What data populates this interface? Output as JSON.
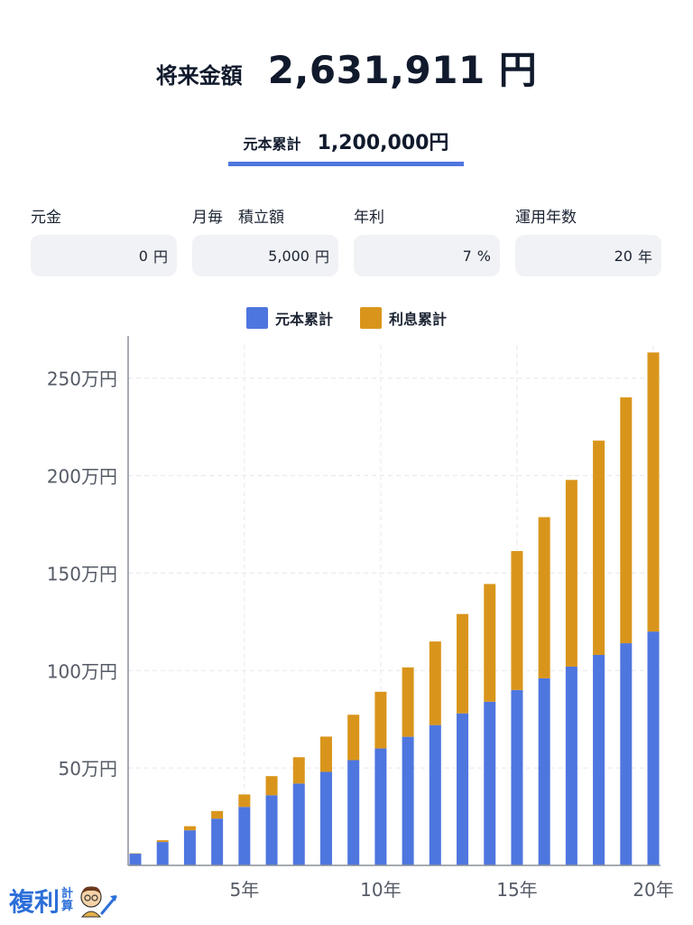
{
  "header": {
    "future_label": "将来金額",
    "future_value": "2,631,911 円",
    "principal_label": "元本累計",
    "principal_value": "1,200,000円"
  },
  "inputs": [
    {
      "label": "元金",
      "value": "0",
      "unit": "円"
    },
    {
      "label": "月毎　積立額",
      "value": "5,000",
      "unit": "円"
    },
    {
      "label": "年利",
      "value": "7",
      "unit": "%"
    },
    {
      "label": "運用年数",
      "value": "20",
      "unit": "年"
    }
  ],
  "logo": {
    "main": "複利",
    "sub_top": "計",
    "sub_bottom": "算"
  },
  "colors": {
    "principal": "#4e76df",
    "interest": "#d9951b",
    "accent": "#4e76df"
  },
  "chart_data": {
    "type": "bar",
    "stacked": true,
    "x": [
      1,
      2,
      3,
      4,
      5,
      6,
      7,
      8,
      9,
      10,
      11,
      12,
      13,
      14,
      15,
      16,
      17,
      18,
      19,
      20
    ],
    "x_ticks": [
      {
        "x": 5,
        "label": "5年"
      },
      {
        "x": 10,
        "label": "10年"
      },
      {
        "x": 15,
        "label": "15年"
      },
      {
        "x": 20,
        "label": "20年"
      }
    ],
    "y_ticks": [
      {
        "y": 50,
        "label": "50万円"
      },
      {
        "y": 100,
        "label": "100万円"
      },
      {
        "y": 150,
        "label": "150万円"
      },
      {
        "y": 200,
        "label": "200万円"
      },
      {
        "y": 250,
        "label": "250万円"
      }
    ],
    "ylim": [
      0,
      267
    ],
    "y_unit": "万円",
    "grid": true,
    "legend": "top-center",
    "series": [
      {
        "name": "元本累計",
        "color": "#4e76df",
        "values": [
          6,
          12,
          18,
          24,
          30,
          36,
          42,
          48,
          54,
          60,
          66,
          72,
          78,
          84,
          90,
          96,
          102,
          108,
          114,
          120
        ]
      },
      {
        "name": "利息累計",
        "color": "#d9951b",
        "values": [
          0.2,
          0.9,
          2.1,
          3.9,
          6.4,
          9.8,
          13.5,
          18.1,
          23.3,
          29.1,
          35.6,
          42.9,
          51,
          60.4,
          71.3,
          82.7,
          95.8,
          110,
          126.2,
          143.2
        ]
      }
    ]
  }
}
